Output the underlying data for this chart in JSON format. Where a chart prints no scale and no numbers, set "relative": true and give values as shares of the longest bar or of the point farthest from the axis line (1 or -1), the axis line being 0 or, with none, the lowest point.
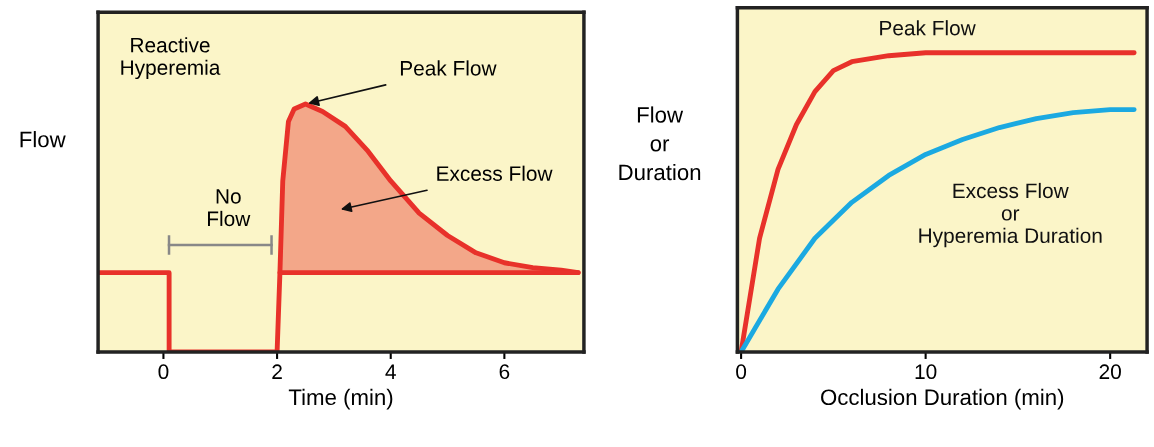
{
  "chart_data": [
    {
      "type": "line",
      "relative": true,
      "xlabel": "Time (min)",
      "ylabel": "Flow",
      "xlim": [
        -1.15,
        7.4
      ],
      "xticks": [
        0,
        2,
        4,
        6
      ],
      "tick_labels": "x",
      "grid": false,
      "legend": false,
      "marker": "none",
      "line_style": "solid",
      "series": [
        {
          "color": "#e8312a",
          "x": [
            -1.15,
            0.1,
            0.1,
            2.0,
            2.05,
            2.1,
            2.2,
            2.3,
            2.5,
            2.8,
            3.2,
            3.6,
            4.0,
            4.5,
            5.0,
            5.5,
            6.0,
            6.5,
            7.0,
            7.3
          ],
          "values": [
            0.32,
            0.32,
            0,
            0,
            0.32,
            0.69,
            0.93,
            0.98,
            1,
            0.97,
            0.91,
            0.81,
            0.69,
            0.56,
            0.47,
            0.4,
            0.36,
            0.34,
            0.33,
            0.32
          ],
          "lower": [
            null,
            null,
            null,
            null,
            0.32,
            0.32,
            0.32,
            0.32,
            0.32,
            0.32,
            0.32,
            0.32,
            0.32,
            0.32,
            0.32,
            0.32,
            0.32,
            0.32,
            0.32,
            0.32
          ],
          "upper": [
            null,
            null,
            null,
            null,
            0.32,
            0.69,
            0.93,
            0.98,
            1,
            0.97,
            0.91,
            0.81,
            0.69,
            0.56,
            0.47,
            0.4,
            0.36,
            0.34,
            0.33,
            0.32
          ]
        },
        {
          "color": "#e8312a",
          "x": [
            2.05,
            7.3
          ],
          "values": [
            0.32,
            0.32
          ]
        }
      ],
      "annotations": [
        "Reactive\nHyperemia",
        {
          "text": "Peak Flow",
          "x": 2.5,
          "y": 1.0
        },
        "Excess Flow",
        "No\nFlow"
      ]
    },
    {
      "type": "line",
      "relative": true,
      "xlabel": "Occlusion Duration (min)",
      "ylabel": "Flow\nor\nDuration",
      "xlim": [
        -0.2,
        22
      ],
      "xticks": [
        0,
        10,
        20
      ],
      "tick_labels": "x",
      "grid": false,
      "legend": false,
      "marker": "none",
      "line_style": "solid",
      "series": [
        {
          "name": "Peak Flow",
          "color": "#e8312a",
          "x": [
            0,
            1,
            2,
            3,
            4,
            5,
            6,
            8,
            10,
            21.3
          ],
          "values": [
            0,
            0.38,
            0.61,
            0.76,
            0.87,
            0.94,
            0.97,
            0.99,
            1,
            1
          ]
        },
        {
          "name": "Excess Flow\nor\nHyperemia Duration",
          "color": "#1ba9e1",
          "x": [
            0,
            2,
            4,
            6,
            8,
            10,
            12,
            14,
            16,
            18,
            20,
            21.3
          ],
          "values": [
            0,
            0.21,
            0.38,
            0.5,
            0.59,
            0.66,
            0.71,
            0.75,
            0.78,
            0.8,
            0.81,
            0.81
          ]
        }
      ]
    }
  ]
}
